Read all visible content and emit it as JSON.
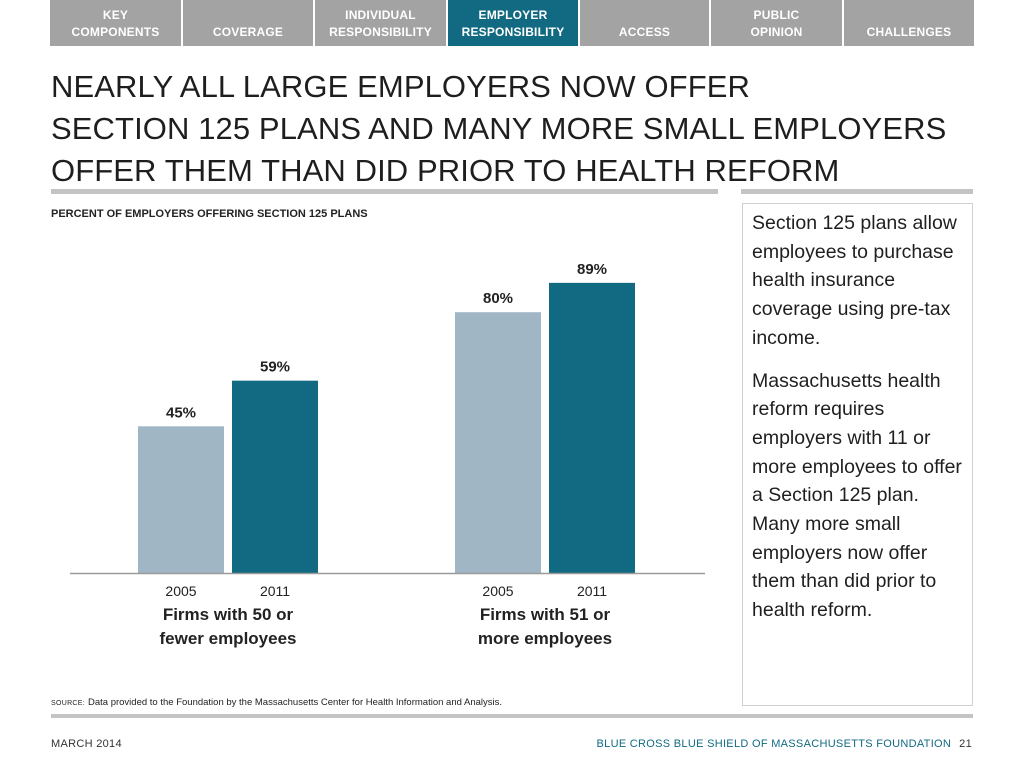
{
  "nav": {
    "tabs": [
      {
        "line1": "KEY",
        "line2": "COMPONENTS",
        "active": false
      },
      {
        "line1": "",
        "line2": "COVERAGE",
        "active": false
      },
      {
        "line1": "INDIVIDUAL",
        "line2": "RESPONSIBILITY",
        "active": false
      },
      {
        "line1": "EMPLOYER",
        "line2": "RESPONSIBILITY",
        "active": true
      },
      {
        "line1": "",
        "line2": "ACCESS",
        "active": false
      },
      {
        "line1": "PUBLIC",
        "line2": "OPINION",
        "active": false
      },
      {
        "line1": "",
        "line2": "CHALLENGES",
        "active": false
      }
    ]
  },
  "title": {
    "line1": "NEARLY ALL LARGE EMPLOYERS NOW OFFER",
    "line2": "SECTION 125 PLANS AND MANY MORE SMALL EMPLOYERS",
    "line3": "OFFER THEM THAN DID PRIOR TO HEALTH REFORM"
  },
  "chart_data": {
    "type": "bar",
    "title": "PERCENT OF EMPLOYERS OFFERING SECTION 125 PLANS",
    "groups": [
      {
        "label_line1": "Firms with 50 or",
        "label_line2": "fewer employees",
        "bars": [
          {
            "year": "2005",
            "value": 45,
            "label": "45%"
          },
          {
            "year": "2011",
            "value": 59,
            "label": "59%"
          }
        ]
      },
      {
        "label_line1": "Firms with 51 or",
        "label_line2": "more employees",
        "bars": [
          {
            "year": "2005",
            "value": 80,
            "label": "80%"
          },
          {
            "year": "2011",
            "value": 89,
            "label": "89%"
          }
        ]
      }
    ],
    "ylim": [
      0,
      100
    ],
    "colors": {
      "2005": "#a1b6c5",
      "2011": "#126a82"
    },
    "grid": false,
    "legend": "none"
  },
  "side": {
    "para1": "Section 125 plans allow employees to purchase health insurance coverage using pre-tax income.",
    "para2": "Massachusetts health reform requires employers with 11 or more employees to offer a Section 125 plan. Many more small employers now offer them than did prior to health reform."
  },
  "source": {
    "label": "SOURCE:",
    "text": "Data provided to the Foundation by the Massachusetts Center for Health Information and Analysis."
  },
  "footer": {
    "date": "MARCH 2014",
    "org": "BLUE CROSS BLUE SHIELD OF MASSACHUSETTS FOUNDATION",
    "page": "21"
  }
}
